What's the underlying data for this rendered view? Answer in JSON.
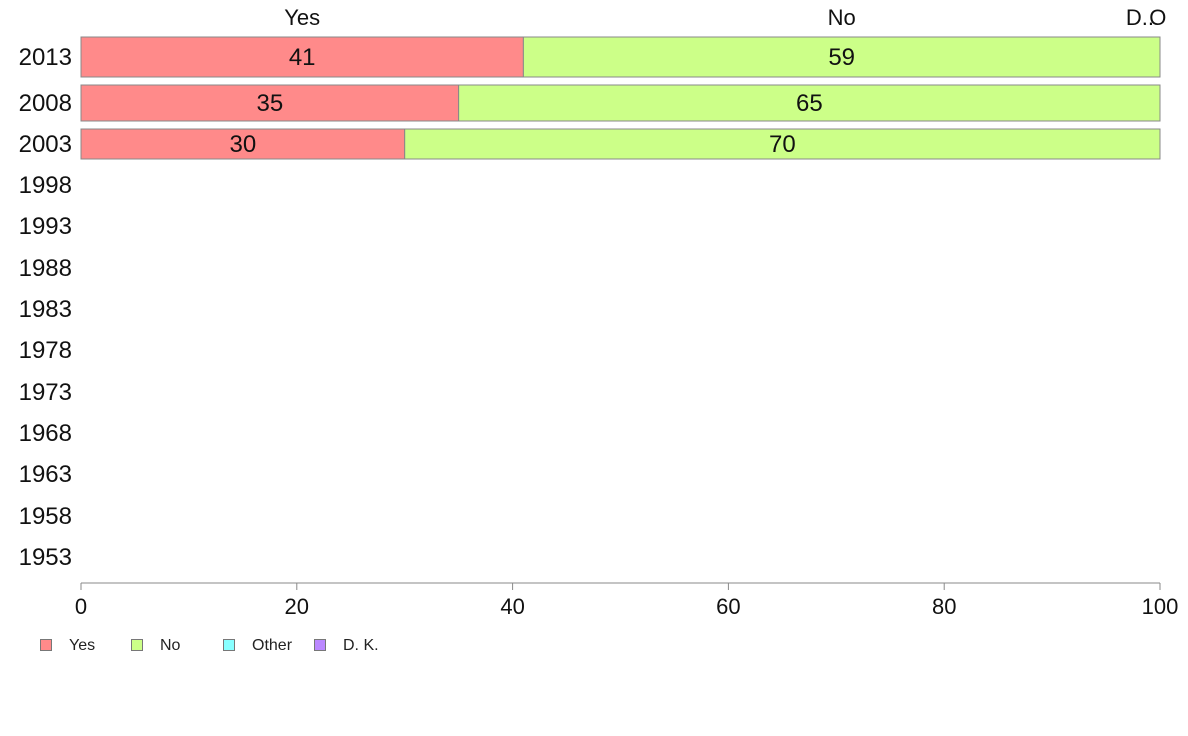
{
  "chart_data": {
    "type": "bar",
    "orientation": "horizontal",
    "stacked": true,
    "categories": [
      "2013",
      "2008",
      "2003",
      "1998",
      "1993",
      "1988",
      "1983",
      "1978",
      "1973",
      "1968",
      "1963",
      "1958",
      "1953"
    ],
    "series": [
      {
        "name": "Yes",
        "color": "#ff8a8a",
        "values": [
          41,
          35,
          30,
          null,
          null,
          null,
          null,
          null,
          null,
          null,
          null,
          null,
          null
        ]
      },
      {
        "name": "No",
        "color": "#ccff88",
        "values": [
          59,
          65,
          70,
          null,
          null,
          null,
          null,
          null,
          null,
          null,
          null,
          null,
          null
        ]
      },
      {
        "name": "Other",
        "color": "#88ffff",
        "values": [
          0,
          0,
          0,
          null,
          null,
          null,
          null,
          null,
          null,
          null,
          null,
          null,
          null
        ]
      },
      {
        "name": "D. K.",
        "color": "#bb88ff",
        "values": [
          0,
          0,
          0,
          null,
          null,
          null,
          null,
          null,
          null,
          null,
          null,
          null,
          null
        ]
      }
    ],
    "top_labels": [
      {
        "text": "Yes",
        "x": 20.5
      },
      {
        "text": "No",
        "x": 70.5
      },
      {
        "text": "O",
        "x": 99.8
      },
      {
        "text": "D..",
        "x": 100
      }
    ],
    "xlim": [
      0,
      100
    ],
    "xticks": [
      0,
      20,
      40,
      60,
      80,
      100
    ],
    "legend_position": "bottom-left",
    "grid": false,
    "title": "",
    "xlabel": "",
    "ylabel": ""
  },
  "legend": [
    {
      "label": "Yes",
      "color": "#ff8a8a"
    },
    {
      "label": "No",
      "color": "#ccff88"
    },
    {
      "label": "Other",
      "color": "#88ffff"
    },
    {
      "label": "D. K.",
      "color": "#bb88ff"
    }
  ]
}
